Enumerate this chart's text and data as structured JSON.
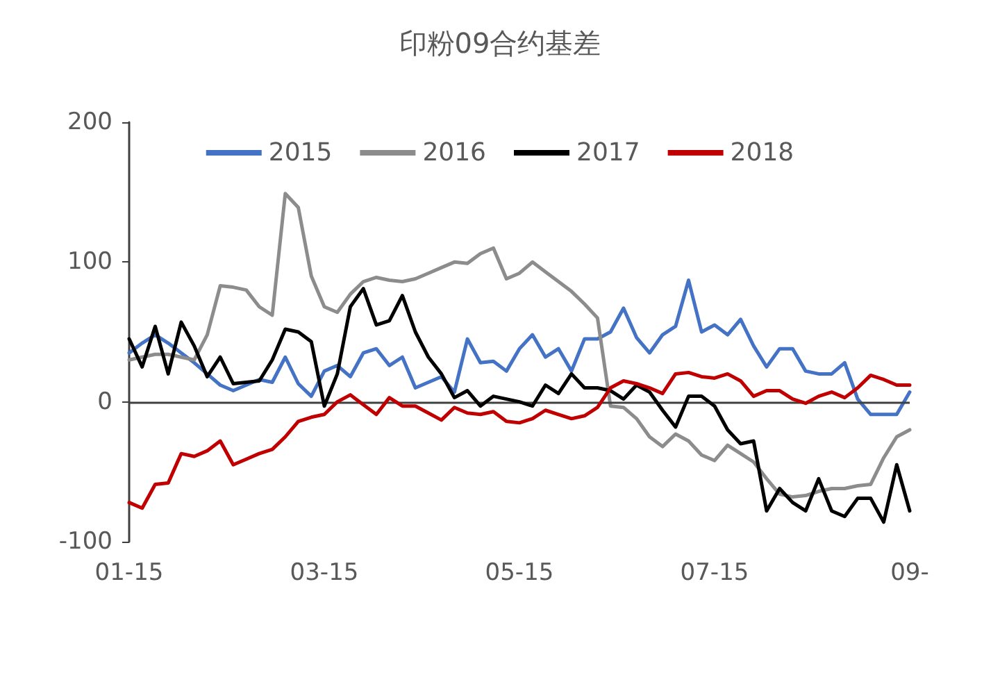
{
  "chart_data": {
    "type": "line",
    "title": "印粉09合约基差",
    "categories": [
      "01-15",
      null,
      null,
      null,
      null,
      null,
      null,
      null,
      null,
      null,
      null,
      null,
      null,
      null,
      null,
      "03-15",
      null,
      null,
      null,
      null,
      null,
      null,
      null,
      null,
      null,
      null,
      null,
      null,
      null,
      null,
      "05-15",
      null,
      null,
      null,
      null,
      null,
      null,
      null,
      null,
      null,
      null,
      null,
      null,
      null,
      null,
      "07-15",
      null,
      null,
      null,
      null,
      null,
      null,
      null,
      null,
      null,
      null,
      null,
      null,
      null,
      null,
      "09-"
    ],
    "ylim": [
      -100,
      200
    ],
    "yticks": [
      -100,
      0,
      100,
      200
    ],
    "grid": false,
    "legend": "top",
    "marker": "none",
    "line_style": "solid",
    "ref_lines": [
      {
        "axis": "y",
        "value": 0,
        "color": "#404040"
      }
    ],
    "series": [
      {
        "name": "2015",
        "color": "#4472c4",
        "values": [
          35,
          42,
          48,
          42,
          35,
          28,
          20,
          12,
          8,
          12,
          16,
          14,
          32,
          13,
          4,
          22,
          26,
          18,
          35,
          38,
          26,
          32,
          10,
          14,
          18,
          7,
          45,
          28,
          29,
          22,
          38,
          48,
          32,
          38,
          22,
          45,
          45,
          50,
          67,
          46,
          35,
          48,
          54,
          87,
          50,
          55,
          48,
          59,
          40,
          25,
          38,
          38,
          22,
          20,
          20,
          28,
          2,
          -9,
          -9,
          -9,
          7
        ]
      },
      {
        "name": "2016",
        "color": "#8c8c8c",
        "values": [
          30,
          32,
          34,
          34,
          32,
          30,
          48,
          83,
          82,
          80,
          68,
          62,
          149,
          139,
          90,
          68,
          64,
          77,
          86,
          89,
          87,
          86,
          88,
          92,
          96,
          100,
          99,
          106,
          110,
          88,
          92,
          100,
          93,
          86,
          79,
          70,
          60,
          -3,
          -4,
          -12,
          -25,
          -32,
          -23,
          -28,
          -38,
          -42,
          -31,
          -37,
          -43,
          -55,
          -66,
          -68,
          -67,
          -64,
          -62,
          -62,
          -60,
          -59,
          -40,
          -25,
          -20
        ]
      },
      {
        "name": "2017",
        "color": "#000000",
        "values": [
          45,
          25,
          54,
          20,
          57,
          40,
          18,
          32,
          13,
          14,
          15,
          30,
          52,
          50,
          43,
          -3,
          20,
          68,
          81,
          55,
          58,
          76,
          50,
          32,
          20,
          3,
          8,
          -3,
          4,
          2,
          0,
          -3,
          12,
          6,
          20,
          10,
          10,
          8,
          2,
          12,
          7,
          -6,
          -18,
          4,
          4,
          -3,
          -20,
          -30,
          -28,
          -78,
          -62,
          -72,
          -78,
          -55,
          -78,
          -82,
          -69,
          -69,
          -86,
          -45,
          -78
        ]
      },
      {
        "name": "2018",
        "color": "#c00000",
        "values": [
          -72,
          -76,
          -59,
          -58,
          -37,
          -39,
          -35,
          -28,
          -45,
          -41,
          -37,
          -34,
          -25,
          -14,
          -11,
          -9,
          0,
          5,
          -2,
          -9,
          3,
          -3,
          -3,
          -8,
          -13,
          -4,
          -8,
          -9,
          -7,
          -14,
          -15,
          -12,
          -6,
          -9,
          -12,
          -10,
          -4,
          10,
          15,
          13,
          10,
          6,
          20,
          21,
          18,
          17,
          20,
          15,
          4,
          8,
          8,
          2,
          -1,
          4,
          7,
          3,
          10,
          19,
          16,
          12,
          12
        ]
      }
    ]
  }
}
